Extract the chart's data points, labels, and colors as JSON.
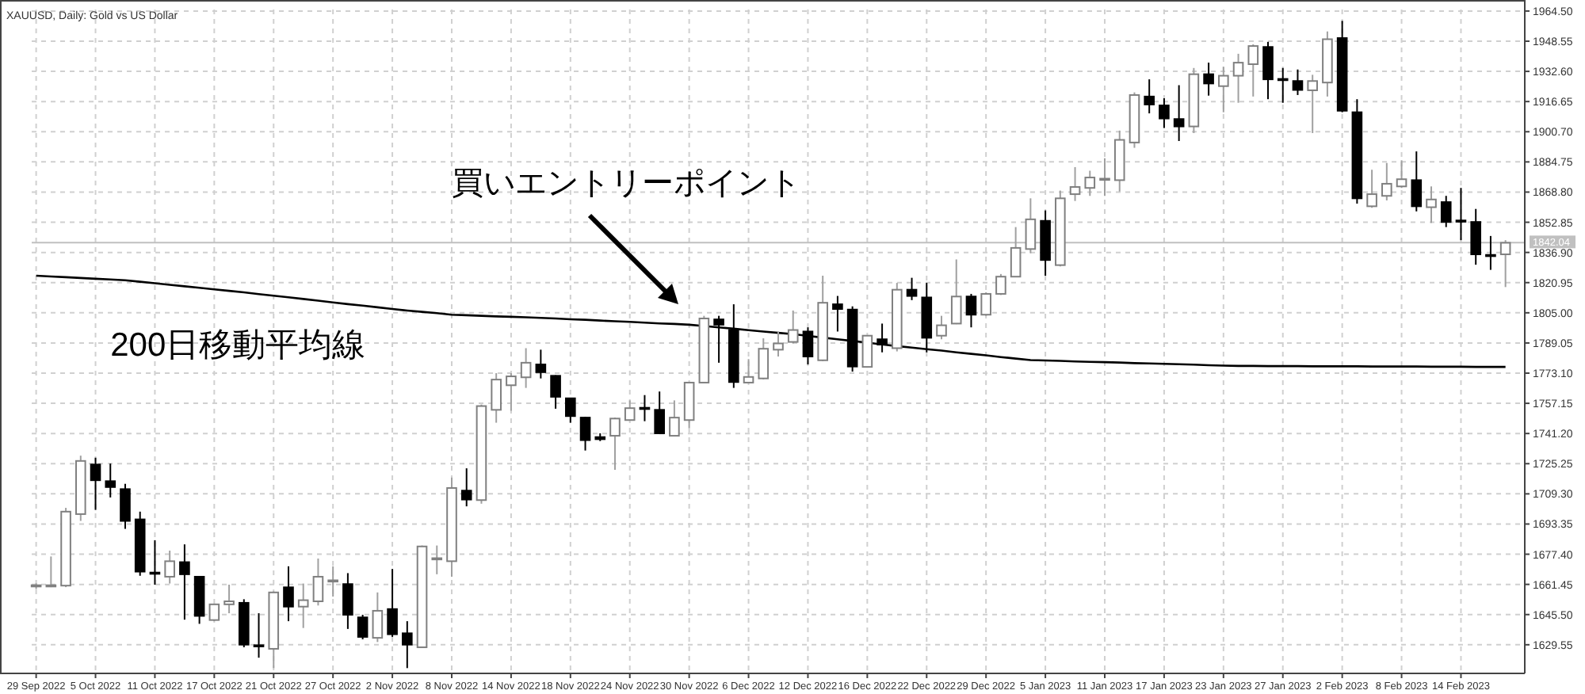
{
  "chart_data": {
    "type": "candlestick",
    "title": "XAUUSD, Daily: Gold vs US Dollar",
    "categories": [
      "29 Sep 2022",
      null,
      null,
      null,
      "5 Oct 2022",
      null,
      null,
      null,
      "11 Oct 2022",
      null,
      null,
      null,
      "17 Oct 2022",
      null,
      null,
      null,
      "21 Oct 2022",
      null,
      null,
      null,
      "27 Oct 2022",
      null,
      null,
      null,
      "2 Nov 2022",
      null,
      null,
      null,
      "8 Nov 2022",
      null,
      null,
      null,
      "14 Nov 2022",
      null,
      null,
      null,
      "18 Nov 2022",
      null,
      null,
      null,
      "24 Nov 2022",
      null,
      null,
      null,
      "30 Nov 2022",
      null,
      null,
      null,
      "6 Dec 2022",
      null,
      null,
      null,
      "12 Dec 2022",
      null,
      null,
      null,
      "16 Dec 2022",
      null,
      null,
      null,
      "22 Dec 2022",
      null,
      null,
      null,
      "29 Dec 2022",
      null,
      null,
      null,
      "5 Jan 2023",
      null,
      null,
      null,
      "11 Jan 2023",
      null,
      null,
      null,
      "17 Jan 2023",
      null,
      null,
      null,
      "23 Jan 2023",
      null,
      null,
      null,
      "27 Jan 2023",
      null,
      null,
      null,
      "2 Feb 2023",
      null,
      null,
      null,
      "8 Feb 2023",
      null,
      null,
      null,
      "14 Feb 2023",
      null,
      null,
      null
    ],
    "ohlc": [
      [
        1660.5,
        1662,
        1659,
        1661
      ],
      [
        1660.5,
        1676.2,
        1660,
        1661
      ],
      [
        1660.8,
        1701.9,
        1660,
        1699.9
      ],
      [
        1698.6,
        1729.5,
        1695,
        1726.7
      ],
      [
        1724.8,
        1728.4,
        1700.8,
        1716.5
      ],
      [
        1716,
        1725.3,
        1707.4,
        1712.9
      ],
      [
        1711.8,
        1714.6,
        1690.8,
        1695
      ],
      [
        1695.8,
        1699.9,
        1666,
        1668.2
      ],
      [
        1667.7,
        1684.8,
        1661.3,
        1667.2
      ],
      [
        1665.5,
        1679.3,
        1661.9,
        1673.7
      ],
      [
        1673.2,
        1682.6,
        1642.8,
        1666.8
      ],
      [
        1665.5,
        1665.5,
        1640.6,
        1644.8
      ],
      [
        1642.6,
        1651,
        1642,
        1650.9
      ],
      [
        1650.9,
        1661.3,
        1646.2,
        1652.5
      ],
      [
        1651.7,
        1653.6,
        1628.2,
        1629.6
      ],
      [
        1629.3,
        1646.2,
        1622.7,
        1629
      ],
      [
        1627.4,
        1657.7,
        1617.2,
        1657.2
      ],
      [
        1659.9,
        1671,
        1642,
        1649.7
      ],
      [
        1649.7,
        1661.9,
        1638.4,
        1653.1
      ],
      [
        1652.5,
        1675.1,
        1650.3,
        1665.5
      ],
      [
        1663.5,
        1671,
        1655,
        1663.6
      ],
      [
        1661.6,
        1667.4,
        1637.9,
        1645.4
      ],
      [
        1644,
        1645.4,
        1632.4,
        1633.7
      ],
      [
        1633.2,
        1657.2,
        1631,
        1647.5
      ],
      [
        1648.4,
        1669.6,
        1633.7,
        1635.1
      ],
      [
        1635.6,
        1642,
        1617.2,
        1629.6
      ],
      [
        1628.2,
        1682,
        1628,
        1681.5
      ],
      [
        1675.1,
        1682,
        1666.8,
        1675.3
      ],
      [
        1673.7,
        1717.9,
        1665.5,
        1712.4
      ],
      [
        1711,
        1722.8,
        1702.7,
        1706.3
      ],
      [
        1706,
        1756.5,
        1704.1,
        1755.7
      ],
      [
        1753.7,
        1773.1,
        1746.9,
        1769.7
      ],
      [
        1766.7,
        1773.1,
        1753.2,
        1771.4
      ],
      [
        1770.9,
        1786.3,
        1765.3,
        1778.6
      ],
      [
        1777.7,
        1785.5,
        1770.3,
        1773.6
      ],
      [
        1771.7,
        1772,
        1754.3,
        1760.6
      ],
      [
        1759.8,
        1760,
        1746.9,
        1750.4
      ],
      [
        1749.6,
        1750,
        1732.2,
        1737.7
      ],
      [
        1739.3,
        1741.3,
        1737.2,
        1738.2
      ],
      [
        1740,
        1749.6,
        1722,
        1749.1
      ],
      [
        1748.3,
        1758.7,
        1748,
        1754.6
      ],
      [
        1754.8,
        1761.5,
        1747.7,
        1754.6
      ],
      [
        1753.7,
        1763.4,
        1741,
        1741.3
      ],
      [
        1740,
        1758.7,
        1740,
        1749.6
      ],
      [
        1748.3,
        1768.4,
        1744.1,
        1768.1
      ],
      [
        1768.1,
        1803.4,
        1768,
        1802
      ],
      [
        1801.5,
        1803.4,
        1778.6,
        1798.7
      ],
      [
        1795.9,
        1809.5,
        1765.3,
        1768.4
      ],
      [
        1768.1,
        1780.5,
        1768,
        1771.1
      ],
      [
        1770.3,
        1791.5,
        1769.8,
        1786
      ],
      [
        1785.5,
        1795.1,
        1781.9,
        1788.8
      ],
      [
        1789.6,
        1806.2,
        1788.8,
        1795.9
      ],
      [
        1795.1,
        1797.3,
        1777.7,
        1781.9
      ],
      [
        1779.9,
        1824.6,
        1779.5,
        1810.3
      ],
      [
        1809.5,
        1813.9,
        1795.1,
        1807
      ],
      [
        1806.7,
        1808.4,
        1773.9,
        1776.6
      ],
      [
        1776.4,
        1793,
        1776,
        1792.9
      ],
      [
        1791,
        1799.3,
        1784.1,
        1788.2
      ],
      [
        1786.3,
        1820.8,
        1784.6,
        1817.2
      ],
      [
        1817.2,
        1823.5,
        1811.7,
        1813.9
      ],
      [
        1813.1,
        1820.8,
        1784.1,
        1791.8
      ],
      [
        1792.9,
        1803.4,
        1791,
        1798.4
      ],
      [
        1799.3,
        1833.2,
        1799,
        1813.6
      ],
      [
        1813.6,
        1815,
        1797.3,
        1804
      ],
      [
        1804,
        1815.8,
        1803.4,
        1815
      ],
      [
        1815,
        1825.5,
        1814.4,
        1824.1
      ],
      [
        1824.1,
        1850.3,
        1824,
        1839.3
      ],
      [
        1838.7,
        1865.5,
        1836.5,
        1854.4
      ],
      [
        1853.6,
        1859.1,
        1824.6,
        1832.9
      ],
      [
        1830.2,
        1869.6,
        1829.5,
        1865.5
      ],
      [
        1867.7,
        1882,
        1864.1,
        1871.5
      ],
      [
        1871,
        1880.1,
        1866.8,
        1876.5
      ],
      [
        1875.6,
        1886.7,
        1866.8,
        1875.9
      ],
      [
        1875.1,
        1901.3,
        1869.1,
        1896.4
      ],
      [
        1895,
        1921.5,
        1892.2,
        1920.1
      ],
      [
        1919.3,
        1928.4,
        1910.4,
        1915.1
      ],
      [
        1914.6,
        1918.4,
        1902.7,
        1907.7
      ],
      [
        1907.4,
        1925.3,
        1895.8,
        1903.5
      ],
      [
        1903.5,
        1934.4,
        1900,
        1931.1
      ],
      [
        1931.1,
        1937.2,
        1919.8,
        1926.2
      ],
      [
        1924.8,
        1935,
        1911,
        1930.3
      ],
      [
        1930.3,
        1941.9,
        1916,
        1937.2
      ],
      [
        1936.4,
        1946.9,
        1919.3,
        1946
      ],
      [
        1945.5,
        1948.2,
        1917.9,
        1928.4
      ],
      [
        1928.6,
        1934.4,
        1916,
        1928.4
      ],
      [
        1927.5,
        1933.6,
        1920.1,
        1922.8
      ],
      [
        1922.6,
        1930.8,
        1900,
        1927.5
      ],
      [
        1926.7,
        1953.7,
        1919.3,
        1949.6
      ],
      [
        1950.2,
        1959.3,
        1911,
        1911.8
      ],
      [
        1911,
        1917.9,
        1862.7,
        1865.5
      ],
      [
        1861.3,
        1880.6,
        1860.5,
        1867.7
      ],
      [
        1866.8,
        1884.2,
        1864.4,
        1873.2
      ],
      [
        1871.8,
        1885.6,
        1871,
        1875.6
      ],
      [
        1875.1,
        1890.3,
        1858.6,
        1861.3
      ],
      [
        1860.8,
        1871.8,
        1852.5,
        1864.9
      ],
      [
        1863.5,
        1866.8,
        1850.3,
        1853
      ],
      [
        1853.8,
        1871,
        1843.4,
        1853.3
      ],
      [
        1853,
        1859.9,
        1830.4,
        1835.9
      ],
      [
        1835.6,
        1845.6,
        1827.7,
        1835.2
      ],
      [
        1835.9,
        1843.4,
        1818.6,
        1842
      ]
    ],
    "series": [
      {
        "type": "line",
        "name": "200日移動平均線",
        "color": "#000000",
        "values": [
          1824.6,
          1824.2,
          1823.8,
          1823.4,
          1823.0,
          1822.6,
          1822.2,
          1821.4,
          1820.6,
          1819.8,
          1819.0,
          1818.2,
          1817.4,
          1816.6,
          1815.8,
          1814.9,
          1814.0,
          1813.2,
          1812.3,
          1811.4,
          1810.5,
          1809.6,
          1808.8,
          1807.9,
          1807.0,
          1806.2,
          1805.5,
          1804.8,
          1804.0,
          1803.7,
          1803.4,
          1803.1,
          1802.9,
          1802.6,
          1802.3,
          1802.0,
          1801.6,
          1801.3,
          1800.9,
          1800.5,
          1800.2,
          1799.8,
          1799.4,
          1799.1,
          1798.7,
          1798.0,
          1797.3,
          1796.6,
          1795.8,
          1795.1,
          1794.4,
          1793.7,
          1792.8,
          1791.9,
          1791.0,
          1790.1,
          1789.2,
          1788.3,
          1787.4,
          1786.6,
          1785.8,
          1785.0,
          1784.1,
          1783.3,
          1782.5,
          1781.6,
          1780.8,
          1780.0,
          1779.8,
          1779.6,
          1779.3,
          1779.1,
          1778.9,
          1778.7,
          1778.4,
          1778.2,
          1778.0,
          1777.8,
          1777.6,
          1777.3,
          1777.1,
          1776.9,
          1776.9,
          1776.8,
          1776.8,
          1776.8,
          1776.7,
          1776.7,
          1776.7,
          1776.7,
          1776.6,
          1776.6,
          1776.6,
          1776.6,
          1776.5,
          1776.5,
          1776.5,
          1776.4,
          1776.4,
          1776.4
        ]
      }
    ],
    "ylim": [
      1614.4,
      1965.3
    ],
    "yticks": [
      {
        "value": 1964.5,
        "label": "1964.50"
      },
      {
        "value": 1948.55,
        "label": "1948.55"
      },
      {
        "value": 1932.6,
        "label": "1932.60"
      },
      {
        "value": 1916.65,
        "label": "1916.65"
      },
      {
        "value": 1900.7,
        "label": "1900.70"
      },
      {
        "value": 1884.75,
        "label": "1884.75"
      },
      {
        "value": 1868.8,
        "label": "1868.80"
      },
      {
        "value": 1852.85,
        "label": "1852.85"
      },
      {
        "value": 1836.9,
        "label": "1836.90"
      },
      {
        "value": 1820.95,
        "label": "1820.95"
      },
      {
        "value": 1805,
        "label": "1805.00"
      },
      {
        "value": 1789.05,
        "label": "1789.05"
      },
      {
        "value": 1773.1,
        "label": "1773.10"
      },
      {
        "value": 1757.15,
        "label": "1757.15"
      },
      {
        "value": 1741.2,
        "label": "1741.20"
      },
      {
        "value": 1725.25,
        "label": "1725.25"
      },
      {
        "value": 1709.3,
        "label": "1709.30"
      },
      {
        "value": 1693.35,
        "label": "1693.35"
      },
      {
        "value": 1677.4,
        "label": "1677.40"
      },
      {
        "value": 1661.45,
        "label": "1661.45"
      },
      {
        "value": 1645.5,
        "label": "1645.50"
      },
      {
        "value": 1629.55,
        "label": "1629.55"
      }
    ],
    "ref_lines": [
      {
        "axis": "y",
        "value": 1842.04,
        "label": "1842.04",
        "color": "#c0c0c0"
      }
    ],
    "annotations": [
      "買いエントリーポイント"
    ],
    "grid": true
  }
}
